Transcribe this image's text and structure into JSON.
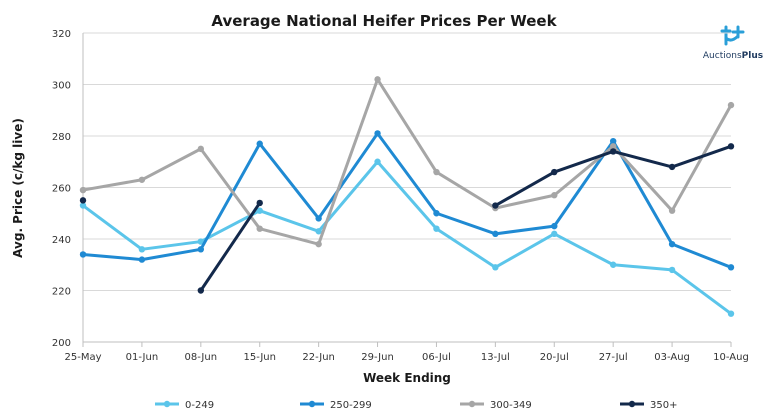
{
  "chart_data": {
    "type": "line",
    "title": "Average National Heifer Prices Per Week",
    "xlabel": "Week Ending",
    "ylabel": "Avg. Price (c/kg live)",
    "categories": [
      "25-May",
      "01-Jun",
      "08-Jun",
      "15-Jun",
      "22-Jun",
      "29-Jun",
      "06-Jul",
      "13-Jul",
      "20-Jul",
      "27-Jul",
      "03-Aug",
      "10-Aug"
    ],
    "ylim": [
      200,
      320
    ],
    "yticks": [
      200,
      220,
      240,
      260,
      280,
      300,
      320
    ],
    "legend_position": "bottom",
    "series": [
      {
        "name": "0-249",
        "color": "#5bc5ea",
        "values": [
          253,
          236,
          239,
          251,
          243,
          270,
          244,
          229,
          242,
          230,
          228,
          211
        ]
      },
      {
        "name": "250-299",
        "color": "#1f8ad3",
        "values": [
          234,
          232,
          236,
          277,
          248,
          281,
          250,
          242,
          245,
          278,
          238,
          229
        ]
      },
      {
        "name": "300-349",
        "color": "#a6a6a6",
        "values": [
          259,
          263,
          275,
          244,
          238,
          302,
          266,
          252,
          257,
          276,
          251,
          292
        ]
      },
      {
        "name": "350+",
        "color": "#13294b",
        "values": [
          255,
          null,
          220,
          254,
          null,
          null,
          null,
          253,
          266,
          274,
          268,
          276
        ]
      }
    ]
  },
  "logo": {
    "text_regular": "Auctions",
    "text_bold": "Plus",
    "color": "#1e3a5f",
    "accent_color": "#2a9fd8"
  }
}
